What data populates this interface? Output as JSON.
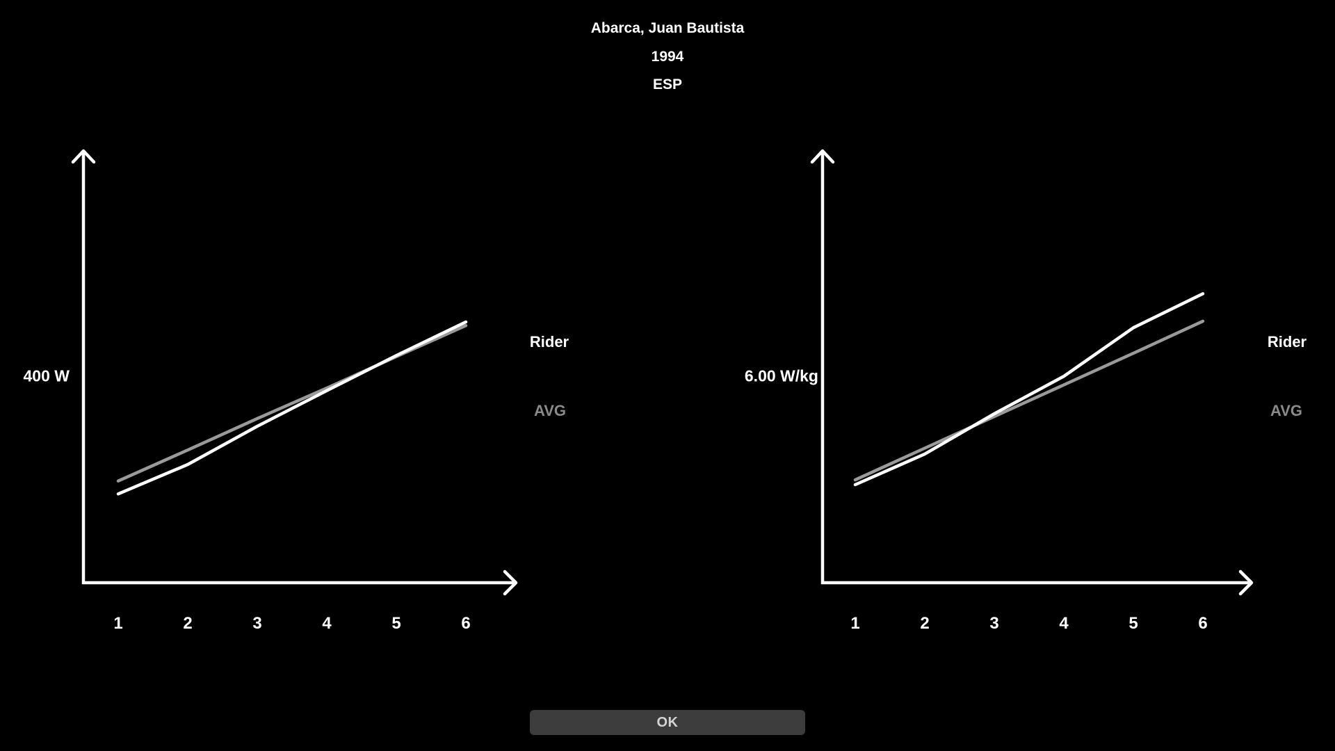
{
  "header": {
    "name": "Abarca, Juan Bautista",
    "year": "1994",
    "country": "ESP"
  },
  "colors": {
    "background": "#000000",
    "axis": "#ffffff",
    "rider_line": "#ffffff",
    "avg_line": "#9a9a9a",
    "avg_label_text": "#8a8a8a",
    "button_background": "#3d3d3d",
    "button_text": "#d4d4d4"
  },
  "chart_data": [
    {
      "type": "line",
      "title": "",
      "xlabel": "",
      "ylabel": "400 W",
      "x": [
        1,
        2,
        3,
        4,
        5,
        6
      ],
      "series": [
        {
          "name": "Rider",
          "color": "#ffffff",
          "values": [
            172,
            229,
            303,
            372,
            440,
            505
          ]
        },
        {
          "name": "AVG",
          "color": "#9a9a9a",
          "values": [
            197,
            257,
            318,
            377,
            438,
            498
          ]
        }
      ],
      "ylim": [
        0,
        835
      ],
      "xlim": [
        1,
        6
      ],
      "grid": false,
      "legend_position": "right",
      "axis_style": "arrow"
    },
    {
      "type": "line",
      "title": "",
      "xlabel": "",
      "ylabel": "6.00 W/kg",
      "x": [
        1,
        2,
        3,
        4,
        5,
        6
      ],
      "series": [
        {
          "name": "Rider",
          "color": "#ffffff",
          "values": [
            2.85,
            3.74,
            4.91,
            6.0,
            7.41,
            8.4
          ]
        },
        {
          "name": "AVG",
          "color": "#9a9a9a",
          "values": [
            2.99,
            3.91,
            4.83,
            5.75,
            6.67,
            7.6
          ]
        }
      ],
      "ylim": [
        0,
        12.53
      ],
      "xlim": [
        1,
        6
      ],
      "grid": false,
      "legend_position": "right",
      "axis_style": "arrow"
    }
  ],
  "footer": {
    "ok_label": "OK"
  }
}
